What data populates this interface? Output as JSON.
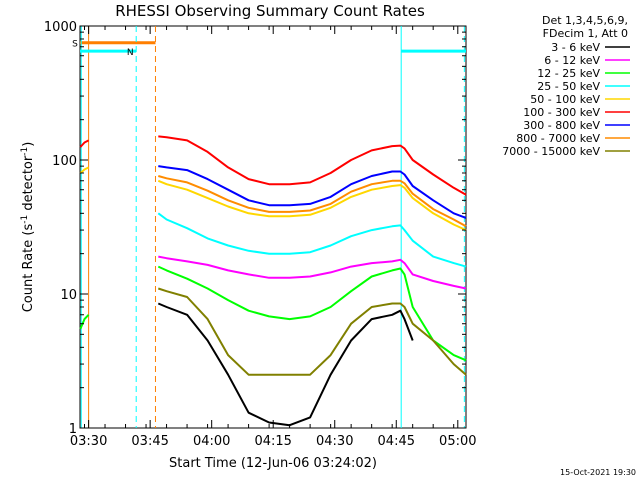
{
  "chart_data": {
    "type": "line",
    "title": "RHESSI Observing Summary Count Rates",
    "xlabel": "Start Time (12-Jun-06 03:24:02)",
    "ylabel_main": "Count Rate (s",
    "ylabel_sup1": "-1",
    "ylabel_mid": " detector",
    "ylabel_sup2": "-1",
    "ylabel_end": ")",
    "yscale": "log",
    "ylim": [
      1,
      1000
    ],
    "xlim_minutes": [
      3.9,
      98
    ],
    "xticks": [
      {
        "label": "03:30",
        "minute": 6
      },
      {
        "label": "03:45",
        "minute": 21
      },
      {
        "label": "04:00",
        "minute": 36
      },
      {
        "label": "04:15",
        "minute": 51
      },
      {
        "label": "04:30",
        "minute": 66
      },
      {
        "label": "04:45",
        "minute": 81
      },
      {
        "label": "05:00",
        "minute": 96
      }
    ],
    "yticks": [
      {
        "label": "1000",
        "value": 1000
      },
      {
        "label": "100",
        "value": 100
      },
      {
        "label": "10",
        "value": 10
      },
      {
        "label": "1",
        "value": 1
      }
    ],
    "legend_header": [
      "Det 1,3,4,5,6,9,",
      "FDecim 1, Att 0"
    ],
    "legend_placement": "right",
    "markers": [
      {
        "name": "S",
        "label": "S",
        "color": "#ff7f00",
        "y_value": 750,
        "start_min": 3.9,
        "end_min": 22.3,
        "solid_line_min": 6,
        "dashed_line_min": 22.3
      },
      {
        "name": "N",
        "label": "N",
        "color": "#00ffff",
        "y_value": 650,
        "start_min": 3.9,
        "end_min": 17.6,
        "dashed_line_min": 17.6,
        "solid_line_min": 4.2
      }
    ],
    "night_segment_2": {
      "color": "#00ffff",
      "y_value": 650,
      "start_min": 82.2,
      "end_min": 98,
      "solid_line_min": 82.2,
      "dashed_line_min": 97.6
    },
    "x": [
      4,
      5,
      6,
      22.5,
      23,
      25,
      30,
      35,
      40,
      45,
      50,
      55,
      60,
      65,
      70,
      75,
      80,
      82,
      83,
      85,
      90,
      95,
      98
    ],
    "series": [
      {
        "name": "3 - 6 keV",
        "color": "#000000",
        "values": [
          null,
          null,
          null,
          null,
          8.5,
          8.0,
          7.0,
          4.5,
          2.5,
          1.3,
          1.1,
          1.05,
          1.2,
          2.5,
          4.5,
          6.5,
          7.0,
          7.5,
          6.5,
          4.5,
          null,
          null,
          null
        ]
      },
      {
        "name": "6 - 12 keV",
        "color": "#ff00ff",
        "values": [
          null,
          null,
          null,
          null,
          19,
          18.5,
          17.5,
          16.5,
          15,
          14,
          13.2,
          13.2,
          13.5,
          14.5,
          16,
          17,
          17.5,
          18,
          17,
          14,
          12.5,
          11.5,
          11
        ]
      },
      {
        "name": "12 - 25 keV",
        "color": "#00ff00",
        "values": [
          5.5,
          6.5,
          7,
          null,
          16,
          15,
          13,
          11,
          9,
          7.5,
          6.8,
          6.5,
          6.8,
          8,
          10.5,
          13.5,
          15,
          15.5,
          14,
          8,
          4.5,
          3.5,
          3.2
        ]
      },
      {
        "name": "25 - 50 keV",
        "color": "#00ffff",
        "values": [
          null,
          null,
          null,
          null,
          40,
          36,
          31,
          26,
          23,
          21,
          20,
          20,
          20.5,
          23,
          27,
          30,
          32,
          32.5,
          30,
          25,
          19,
          17,
          16
        ]
      },
      {
        "name": "50 - 100 keV",
        "color": "#ffd700",
        "values": [
          80,
          85,
          88,
          null,
          70,
          66,
          60,
          52,
          45,
          40,
          38,
          38,
          39,
          44,
          53,
          60,
          64,
          65,
          62,
          52,
          40,
          33,
          30
        ]
      },
      {
        "name": "100 - 300 keV",
        "color": "#ff0000",
        "values": [
          125,
          135,
          140,
          null,
          150,
          148,
          140,
          115,
          88,
          72,
          66,
          66,
          68,
          80,
          100,
          118,
          127,
          128,
          122,
          100,
          78,
          62,
          55
        ]
      },
      {
        "name": "300 - 800 keV",
        "color": "#0000ff",
        "values": [
          null,
          null,
          null,
          null,
          90,
          88,
          84,
          72,
          60,
          50,
          46,
          46,
          47,
          53,
          66,
          76,
          82,
          82,
          78,
          64,
          50,
          40,
          37
        ]
      },
      {
        "name": "800 - 7000 keV",
        "color": "#ff8c00",
        "values": [
          null,
          null,
          null,
          null,
          76,
          73,
          68,
          59,
          50,
          44,
          41,
          41,
          42,
          47,
          58,
          66,
          70,
          70,
          67,
          56,
          43,
          36,
          32
        ]
      },
      {
        "name": "7000 - 15000 keV",
        "color": "#808000",
        "values": [
          null,
          null,
          null,
          null,
          11,
          10.5,
          9.5,
          6.5,
          3.5,
          2.5,
          2.5,
          2.5,
          2.5,
          3.5,
          6,
          8,
          8.5,
          8.5,
          8,
          6,
          4.5,
          3,
          2.5
        ]
      }
    ],
    "grid": false
  },
  "timestamp": "15-Oct-2021 19:30"
}
